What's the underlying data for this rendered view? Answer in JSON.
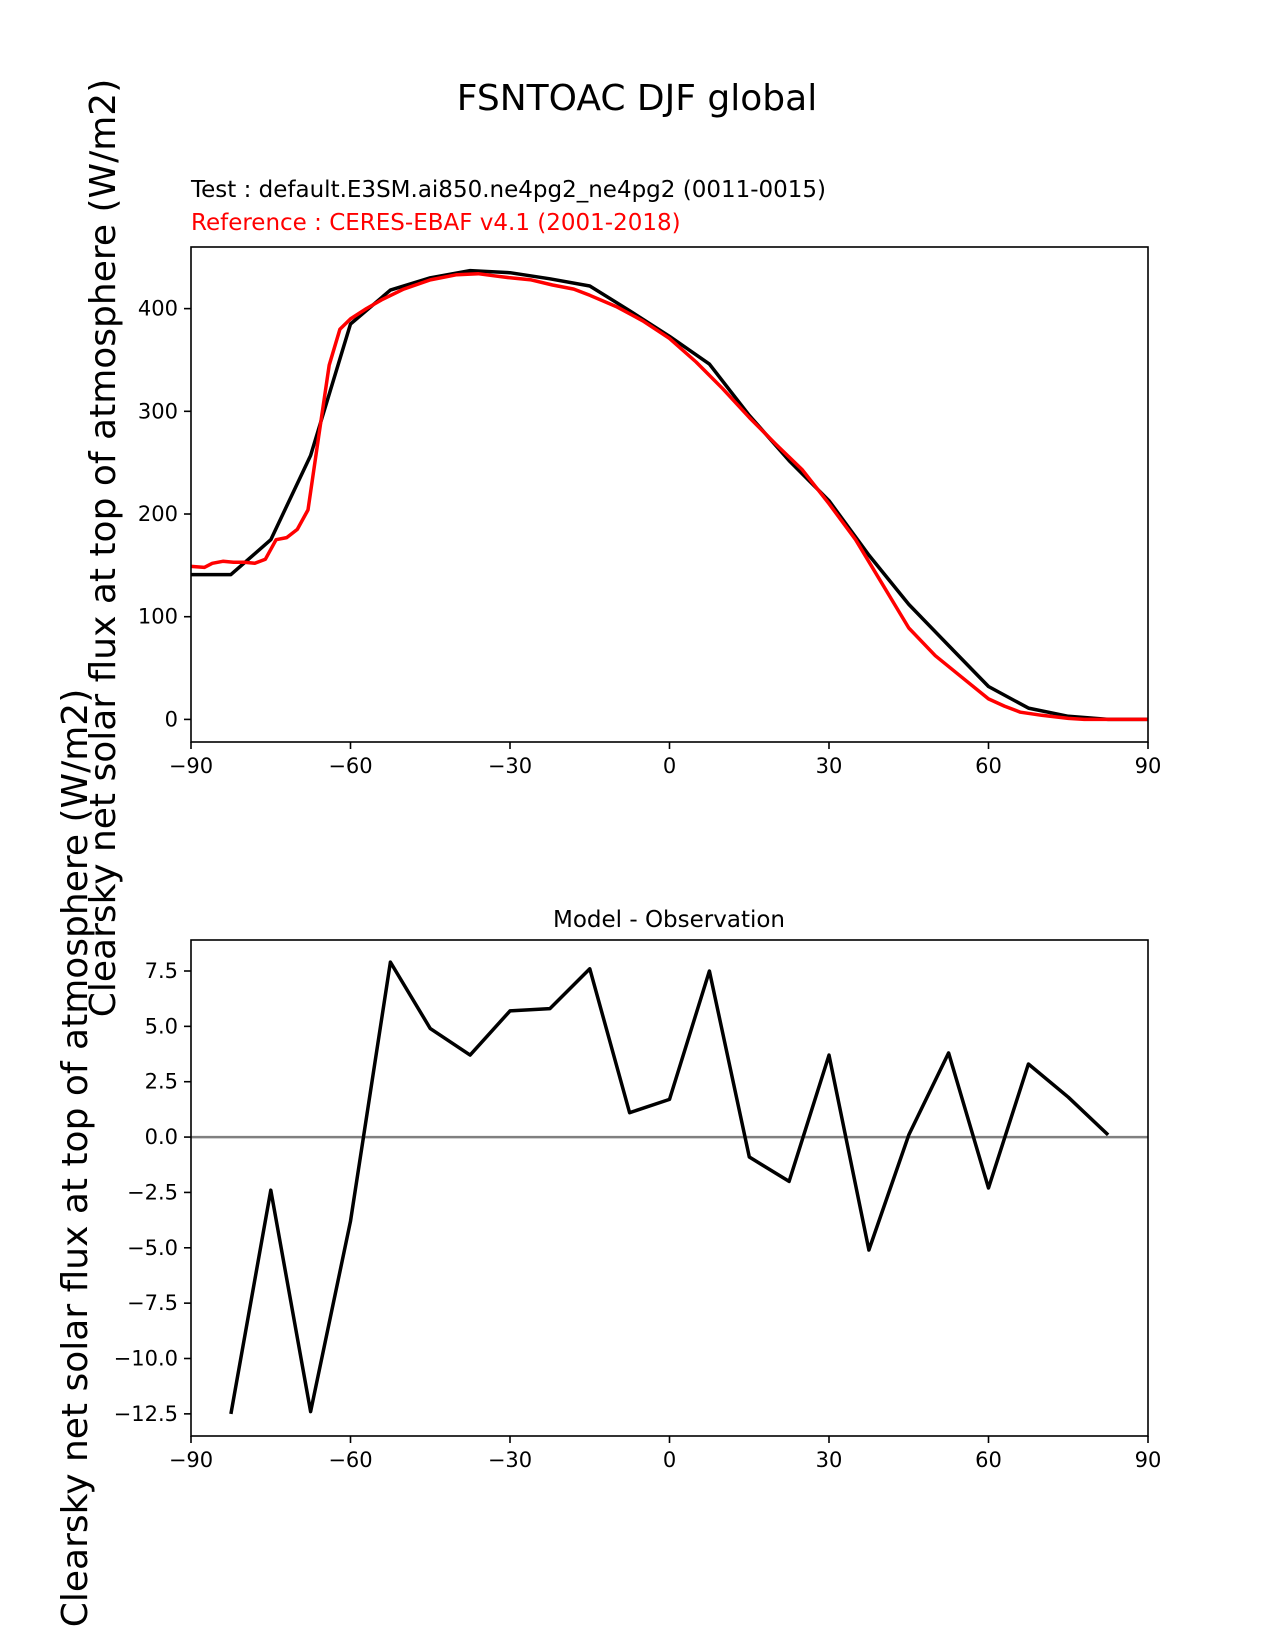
{
  "figure": {
    "suptitle": "FSNTOAC DJF global"
  },
  "chart_data": [
    {
      "type": "line",
      "title_test": "Test : default.E3SM.ai850.ne4pg2_ne4pg2 (0011-0015)",
      "title_ref": "Reference : CERES-EBAF v4.1 (2001-2018)",
      "xlabel": "",
      "ylabel": "Clearsky net solar flux at top of atmosphere (W/m2)",
      "xlim": [
        -90,
        90
      ],
      "ylim": [
        -22,
        460
      ],
      "xticks": [
        -90,
        -60,
        -30,
        0,
        30,
        60,
        90
      ],
      "xtick_labels": [
        "−90",
        "−60",
        "−30",
        "0",
        "30",
        "60",
        "90"
      ],
      "yticks": [
        0,
        100,
        200,
        300,
        400
      ],
      "ytick_labels": [
        "0",
        "100",
        "200",
        "300",
        "400"
      ],
      "series": [
        {
          "name": "Test",
          "color": "#000000",
          "x": [
            -90,
            -82.5,
            -75,
            -67.5,
            -60,
            -52.5,
            -45,
            -37.5,
            -30,
            -22.5,
            -15,
            -7.5,
            0,
            7.5,
            15,
            22.5,
            30,
            37.5,
            45,
            52.5,
            60,
            67.5,
            75,
            82.5,
            90
          ],
          "y": [
            141,
            141,
            175,
            257,
            385,
            418,
            430,
            437,
            435,
            429,
            422,
            398,
            373,
            346,
            296,
            252,
            213,
            160,
            112,
            72,
            32,
            11,
            3,
            0,
            0
          ]
        },
        {
          "name": "Reference",
          "color": "#ff0000",
          "x": [
            -90,
            -87.5,
            -86,
            -84,
            -82,
            -80,
            -78,
            -76,
            -74,
            -72,
            -70,
            -68,
            -66,
            -64,
            -62,
            -60,
            -57,
            -54,
            -50,
            -45,
            -40,
            -36,
            -33,
            -30,
            -26,
            -22,
            -18,
            -15,
            -10,
            -5,
            0,
            5,
            10,
            15,
            20,
            25,
            30,
            35,
            40,
            45,
            50,
            55,
            60,
            63,
            66,
            70,
            75,
            78,
            82,
            86,
            90
          ],
          "y": [
            149,
            148,
            152,
            154,
            153,
            153,
            152,
            156,
            175,
            177,
            185,
            204,
            275,
            345,
            380,
            390,
            400,
            409,
            419,
            428,
            433,
            434,
            432,
            430,
            428,
            423,
            419,
            413,
            402,
            388,
            371,
            348,
            322,
            294,
            268,
            243,
            210,
            175,
            132,
            89,
            62,
            41,
            20,
            13,
            7,
            4,
            1,
            0,
            0,
            0,
            0
          ]
        }
      ]
    },
    {
      "type": "line",
      "title": "Model - Observation",
      "xlabel": "",
      "ylabel": "Clearsky net solar flux at top of atmosphere (W/m2)",
      "xlim": [
        -90,
        90
      ],
      "ylim": [
        -13.5,
        8.9
      ],
      "xticks": [
        -90,
        -60,
        -30,
        0,
        30,
        60,
        90
      ],
      "xtick_labels": [
        "−90",
        "−60",
        "−30",
        "0",
        "30",
        "60",
        "90"
      ],
      "yticks": [
        7.5,
        5.0,
        2.5,
        0.0,
        -2.5,
        -5.0,
        -7.5,
        -10.0,
        -12.5
      ],
      "ytick_labels": [
        "7.5",
        "5.0",
        "2.5",
        "0.0",
        "−2.5",
        "−5.0",
        "−7.5",
        "−10.0",
        "−12.5"
      ],
      "zero_line": {
        "y": 0,
        "color": "#808080"
      },
      "series": [
        {
          "name": "Model - Observation",
          "color": "#000000",
          "x": [
            -82.5,
            -75,
            -67.5,
            -60,
            -52.5,
            -45,
            -37.5,
            -30,
            -22.5,
            -15,
            -7.5,
            0,
            7.5,
            15,
            22.5,
            30,
            37.5,
            45,
            52.5,
            60,
            67.5,
            75,
            82.5
          ],
          "y": [
            -12.5,
            -2.4,
            -12.4,
            -3.8,
            7.9,
            4.9,
            3.7,
            5.7,
            5.8,
            7.6,
            1.1,
            1.7,
            7.5,
            -0.9,
            -2.0,
            3.7,
            -5.1,
            0.1,
            3.8,
            -2.3,
            3.3,
            1.8,
            0.1
          ]
        }
      ]
    }
  ]
}
